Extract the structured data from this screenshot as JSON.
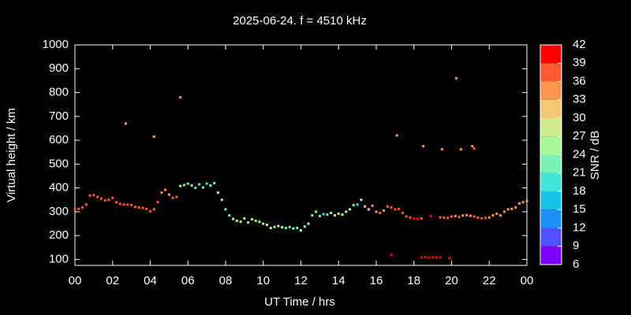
{
  "chart_data": {
    "type": "scatter",
    "title": "2025-06-24. f = 4510 kHz",
    "xlabel": "UT Time / hrs",
    "ylabel": "Virtual height / km",
    "colorbar_label": "SNR / dB",
    "xlim": [
      0,
      24
    ],
    "xticks": [
      {
        "value": 0,
        "label": "00"
      },
      {
        "value": 2,
        "label": "02"
      },
      {
        "value": 4,
        "label": "04"
      },
      {
        "value": 6,
        "label": "06"
      },
      {
        "value": 8,
        "label": "08"
      },
      10,
      12,
      14,
      16,
      18,
      20,
      22,
      {
        "value": 24,
        "label": "00"
      }
    ],
    "ylim": [
      75,
      1000
    ],
    "yticks": [
      100,
      200,
      300,
      400,
      500,
      600,
      700,
      800,
      900,
      1000
    ],
    "clim": [
      6,
      42
    ],
    "cticks": [
      6,
      9,
      12,
      15,
      18,
      21,
      24,
      27,
      30,
      33,
      36,
      39,
      42
    ],
    "colors": [
      "#8000ff",
      "#5050ff",
      "#1e90f5",
      "#14c3e6",
      "#3ce6d2",
      "#78f5b4",
      "#a8fa98",
      "#d2eb8c",
      "#f5c878",
      "#ff9650",
      "#ff5a32",
      "#ff0000"
    ],
    "x": [
      0,
      0.2,
      0.4,
      0.6,
      0.8,
      1.0,
      1.2,
      1.4,
      1.6,
      1.8,
      2.0,
      2.2,
      2.4,
      2.6,
      2.8,
      3.0,
      3.2,
      3.4,
      3.6,
      3.8,
      4.0,
      4.2,
      4.4,
      4.6,
      4.8,
      5.0,
      5.2,
      5.4,
      5.6,
      5.8,
      6.0,
      6.2,
      6.4,
      6.6,
      6.8,
      7.0,
      7.2,
      7.4,
      7.6,
      7.8,
      8.0,
      8.2,
      8.4,
      8.6,
      8.8,
      9.0,
      9.2,
      9.4,
      9.6,
      9.8,
      10.0,
      10.2,
      10.4,
      10.6,
      10.8,
      11.0,
      11.2,
      11.4,
      11.6,
      11.8,
      12.0,
      12.2,
      12.4,
      12.6,
      12.8,
      13.0,
      13.2,
      13.4,
      13.6,
      13.8,
      14.0,
      14.2,
      14.4,
      14.6,
      14.8,
      15.0,
      15.2,
      15.4,
      15.6,
      15.8,
      16.0,
      16.2,
      16.4,
      16.6,
      16.8,
      17.0,
      17.2,
      17.4,
      17.6,
      17.8,
      18.0,
      18.2,
      18.4,
      18.9,
      19.4,
      19.6,
      19.8,
      20.0,
      20.2,
      20.4,
      20.6,
      20.8,
      21.0,
      21.2,
      21.4,
      21.6,
      21.8,
      22.0,
      22.2,
      22.4,
      22.6,
      22.8,
      23.0,
      23.2,
      23.4,
      23.6,
      23.8,
      24.0,
      16.8,
      18.4,
      18.6,
      18.8,
      19.0,
      19.2,
      19.4,
      19.9,
      2.7,
      4.2,
      5.6,
      17.1,
      18.5,
      19.5,
      20.25,
      20.5,
      21.1,
      21.2
    ],
    "values": [
      310,
      312,
      318,
      330,
      368,
      370,
      362,
      355,
      348,
      350,
      358,
      340,
      333,
      330,
      330,
      328,
      320,
      318,
      316,
      312,
      302,
      310,
      340,
      380,
      392,
      372,
      358,
      362,
      408,
      412,
      418,
      410,
      400,
      415,
      402,
      418,
      410,
      420,
      380,
      350,
      310,
      285,
      270,
      262,
      258,
      272,
      255,
      268,
      262,
      258,
      250,
      245,
      232,
      236,
      240,
      235,
      232,
      236,
      230,
      232,
      222,
      238,
      250,
      285,
      300,
      282,
      290,
      288,
      295,
      285,
      292,
      288,
      300,
      310,
      328,
      330,
      350,
      322,
      310,
      325,
      300,
      295,
      305,
      322,
      318,
      310,
      312,
      295,
      280,
      276,
      272,
      270,
      272,
      282,
      276,
      275,
      274,
      280,
      282,
      278,
      284,
      286,
      283,
      280,
      275,
      272,
      274,
      276,
      285,
      292,
      285,
      300,
      310,
      312,
      318,
      335,
      340,
      345,
      120,
      108,
      110,
      108,
      108,
      108,
      108,
      106,
      670,
      615,
      780,
      620,
      575,
      562,
      860,
      562,
      575,
      565
    ],
    "snr": [
      36,
      36,
      36,
      36,
      37,
      37,
      37,
      37,
      37,
      37,
      37,
      37,
      37,
      37,
      37,
      37,
      37,
      37,
      37,
      37,
      37,
      36,
      36,
      34,
      34,
      35,
      36,
      36,
      24,
      22,
      23,
      25,
      22,
      20,
      22,
      19,
      21,
      22,
      25,
      24,
      23,
      22,
      26,
      27,
      28,
      25,
      22,
      27,
      26,
      25,
      27,
      28,
      26,
      25,
      26,
      24,
      23,
      22,
      25,
      22,
      24,
      26,
      25,
      22,
      25,
      21,
      20,
      22,
      26,
      28,
      27,
      24,
      28,
      25,
      22,
      20,
      27,
      30,
      31,
      33,
      35,
      36,
      35,
      36,
      36,
      36,
      37,
      37,
      37,
      38,
      39,
      40,
      37,
      40,
      36,
      36,
      36,
      36,
      33,
      36,
      35,
      34,
      35,
      36,
      36,
      36,
      36,
      35,
      34,
      33,
      35,
      35,
      35,
      35,
      35,
      34,
      34,
      34,
      40,
      40,
      40,
      40,
      40,
      40,
      40,
      40,
      33,
      34,
      33,
      34,
      33,
      33,
      33,
      33,
      34,
      36
    ]
  }
}
